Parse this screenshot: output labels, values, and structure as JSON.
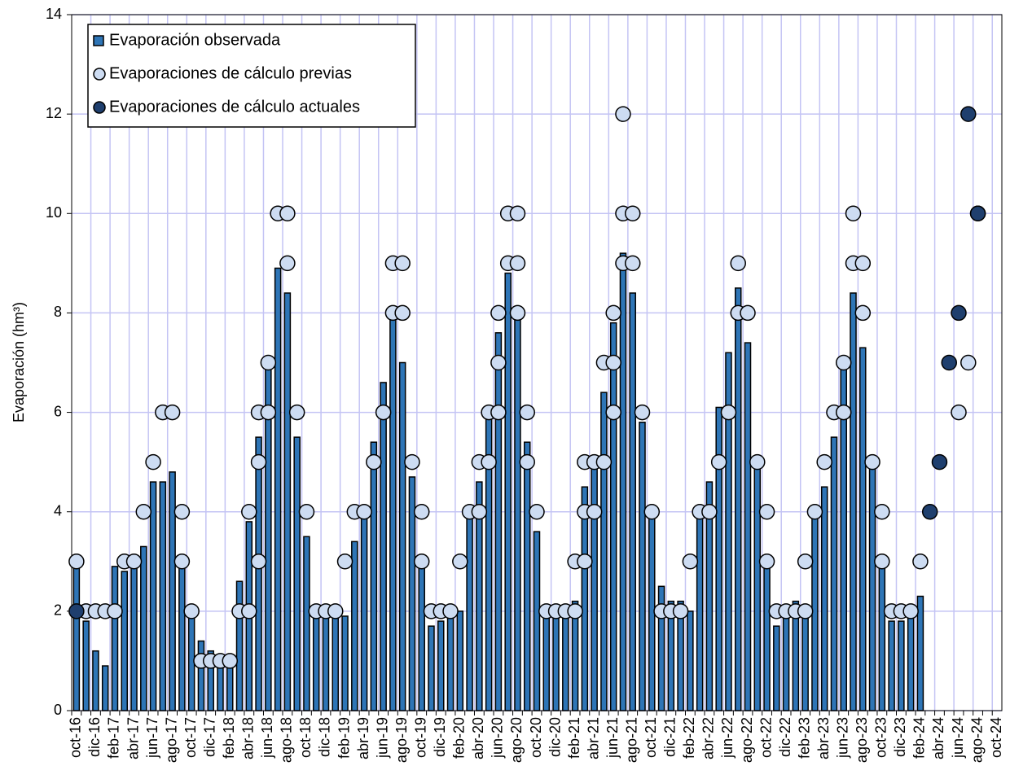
{
  "chart_data": {
    "type": "bar-scatter",
    "y_label": "Evaporación (hm³)",
    "ylim": [
      0,
      14
    ],
    "yticks": [
      0,
      2,
      4,
      6,
      8,
      10,
      12,
      14
    ],
    "grid": true,
    "legend": "upper left",
    "categories": [
      "oct-16",
      null,
      "dic-16",
      null,
      "feb-17",
      null,
      "abr-17",
      null,
      "jun-17",
      null,
      "ago-17",
      null,
      "oct-17",
      null,
      "dic-17",
      null,
      "feb-18",
      null,
      "abr-18",
      null,
      "jun-18",
      null,
      "ago-18",
      null,
      "oct-18",
      null,
      "dic-18",
      null,
      "feb-19",
      null,
      "abr-19",
      null,
      "jun-19",
      null,
      "ago-19",
      null,
      "oct-19",
      null,
      "dic-19",
      null,
      "feb-20",
      null,
      "abr-20",
      null,
      "jun-20",
      null,
      "ago-20",
      null,
      "oct-20",
      null,
      "dic-20",
      null,
      "feb-21",
      null,
      "abr-21",
      null,
      "jun-21",
      null,
      "ago-21",
      null,
      "oct-21",
      null,
      "dic-21",
      null,
      "feb-22",
      null,
      "abr-22",
      null,
      "jun-22",
      null,
      "ago-22",
      null,
      "oct-22",
      null,
      "dic-22",
      null,
      "feb-23",
      null,
      "abr-23",
      null,
      "jun-23",
      null,
      "ago-23",
      null,
      "oct-23",
      null,
      "dic-23",
      null,
      "feb-24",
      null,
      "abr-24",
      null,
      "jun-24",
      null,
      "ago-24",
      null,
      "oct-24"
    ],
    "series": [
      {
        "name": "Evaporación observada",
        "kind": "bar",
        "color": "#2e75b6",
        "values": [
          2.9,
          1.8,
          1.2,
          0.9,
          2.9,
          2.8,
          3.0,
          3.3,
          4.6,
          4.6,
          4.8,
          3.0,
          2.0,
          1.4,
          1.2,
          1.1,
          1.0,
          2.6,
          3.8,
          5.5,
          6.9,
          8.9,
          8.4,
          5.5,
          3.5,
          2.0,
          2.0,
          2.0,
          1.9,
          3.4,
          3.9,
          5.4,
          6.6,
          7.9,
          7.0,
          4.7,
          3.0,
          1.7,
          1.8,
          1.9,
          2.0,
          3.9,
          4.6,
          6.0,
          7.6,
          8.8,
          7.9,
          5.4,
          3.6,
          2.0,
          2.0,
          2.0,
          2.2,
          4.5,
          4.9,
          6.4,
          7.8,
          9.2,
          8.4,
          5.8,
          3.9,
          2.5,
          2.2,
          2.2,
          2.0,
          3.9,
          4.6,
          6.1,
          7.2,
          8.5,
          7.4,
          4.9,
          2.9,
          1.7,
          2.0,
          2.2,
          2.0,
          3.9,
          4.5,
          5.5,
          6.9,
          8.4,
          7.3,
          4.9,
          2.9,
          1.8,
          1.8,
          2.0,
          2.3,
          null,
          null,
          null,
          null,
          null,
          null,
          null,
          null
        ]
      },
      {
        "name": "Evaporaciones de cálculo previas",
        "kind": "points",
        "color": "#cddcf2",
        "values": [
          [
            3
          ],
          [
            2
          ],
          [
            2
          ],
          [
            2
          ],
          [
            2
          ],
          [
            3
          ],
          [
            3
          ],
          [
            4
          ],
          [
            5
          ],
          [
            6
          ],
          [
            6
          ],
          [
            4,
            3
          ],
          [
            2
          ],
          [
            1
          ],
          [
            1
          ],
          [
            1
          ],
          [
            1
          ],
          [
            2
          ],
          [
            4,
            2
          ],
          [
            6,
            5,
            3
          ],
          [
            7,
            6
          ],
          [
            10
          ],
          [
            10,
            9
          ],
          [
            6
          ],
          [
            4
          ],
          [
            2
          ],
          [
            2
          ],
          [
            2
          ],
          [
            3
          ],
          [
            4
          ],
          [
            4
          ],
          [
            5
          ],
          [
            6
          ],
          [
            9,
            8
          ],
          [
            9,
            8
          ],
          [
            5
          ],
          [
            4,
            3
          ],
          [
            2
          ],
          [
            2
          ],
          [
            2
          ],
          [
            3
          ],
          [
            4
          ],
          [
            5,
            4
          ],
          [
            6,
            5
          ],
          [
            8,
            7,
            6
          ],
          [
            10,
            9
          ],
          [
            10,
            9,
            8
          ],
          [
            6,
            5
          ],
          [
            4
          ],
          [
            2
          ],
          [
            2
          ],
          [
            2
          ],
          [
            3,
            2
          ],
          [
            5,
            4,
            3
          ],
          [
            5,
            4
          ],
          [
            7,
            5
          ],
          [
            8,
            7,
            6
          ],
          [
            12,
            10,
            9
          ],
          [
            10,
            9
          ],
          [
            6
          ],
          [
            4
          ],
          [
            2
          ],
          [
            2
          ],
          [
            2
          ],
          [
            3
          ],
          [
            4
          ],
          [
            4
          ],
          [
            5
          ],
          [
            6
          ],
          [
            9,
            8
          ],
          [
            8
          ],
          [
            5
          ],
          [
            4,
            3
          ],
          [
            2
          ],
          [
            2
          ],
          [
            2
          ],
          [
            3,
            2
          ],
          [
            4
          ],
          [
            5
          ],
          [
            6
          ],
          [
            7,
            6
          ],
          [
            10,
            9
          ],
          [
            9,
            8
          ],
          [
            5
          ],
          [
            4,
            3
          ],
          [
            2
          ],
          [
            2
          ],
          [
            2
          ],
          [
            3
          ],
          [],
          [],
          [],
          [
            6
          ],
          [
            7
          ],
          [
            10
          ],
          [],
          [],
          []
        ]
      },
      {
        "name": "Evaporaciones de cálculo actuales",
        "kind": "dots",
        "color": "#1f3f6e",
        "values": [
          2,
          null,
          null,
          null,
          null,
          null,
          null,
          null,
          null,
          null,
          null,
          null,
          null,
          null,
          null,
          null,
          null,
          null,
          null,
          null,
          null,
          null,
          null,
          null,
          null,
          null,
          null,
          null,
          null,
          null,
          null,
          null,
          null,
          null,
          null,
          null,
          null,
          null,
          null,
          null,
          null,
          null,
          null,
          null,
          null,
          null,
          null,
          null,
          null,
          null,
          null,
          null,
          null,
          null,
          null,
          null,
          null,
          null,
          null,
          null,
          null,
          null,
          null,
          null,
          null,
          null,
          null,
          null,
          null,
          null,
          null,
          null,
          null,
          null,
          null,
          null,
          null,
          null,
          null,
          null,
          null,
          null,
          null,
          null,
          null,
          null,
          null,
          null,
          null,
          4,
          5,
          7,
          8,
          12,
          10,
          null,
          null
        ]
      }
    ]
  }
}
